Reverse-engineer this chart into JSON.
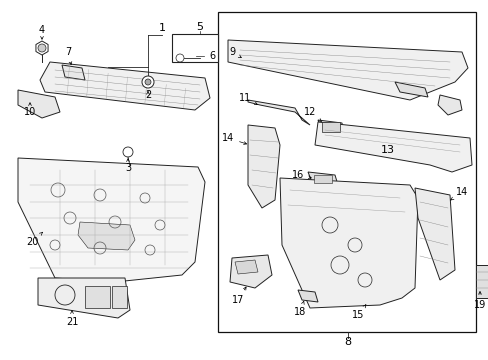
{
  "bg_color": "#ffffff",
  "lc": "#222222",
  "figsize": [
    4.89,
    3.6
  ],
  "dpi": 100
}
